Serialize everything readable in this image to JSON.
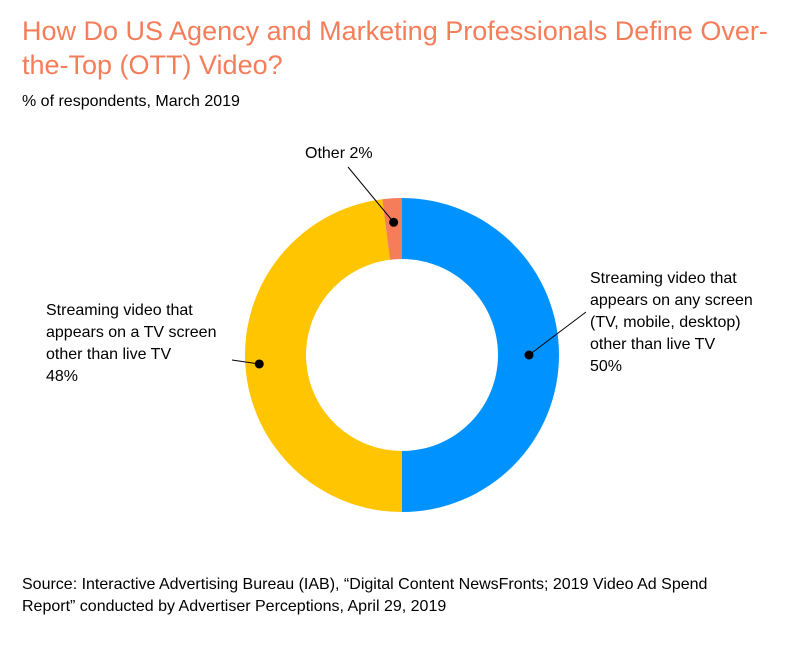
{
  "title": "How Do US Agency and Marketing Professionals Define Over-the-Top (OTT) Video?",
  "subtitle": "% of respondents, March 2019",
  "source": "Source: Interactive Advertising Bureau (IAB), “Digital Content NewsFronts; 2019 Video Ad Spend Report” conducted by Advertiser Perceptions, April 29, 2019",
  "labels": {
    "any_screen": "Streaming video that\nappears on any screen\n(TV, mobile, desktop)\nother than live TV\n50%",
    "tv_screen": "Streaming video that\nappears on a TV screen\nother than live TV\n48%",
    "other": "Other 2%"
  },
  "chart_data": {
    "type": "pie",
    "style": "donut",
    "title": "How Do US Agency and Marketing Professionals Define Over-the-Top (OTT) Video?",
    "subtitle": "% of respondents, March 2019",
    "unit": "%",
    "slices": [
      {
        "name": "Streaming video that appears on any screen (TV, mobile, desktop) other than live TV",
        "value": 50,
        "color": "#0093ff"
      },
      {
        "name": "Streaming video that appears on a TV screen other than live TV",
        "value": 48,
        "color": "#ffc500"
      },
      {
        "name": "Other",
        "value": 2,
        "color": "#f57d5a"
      }
    ],
    "legend": "none"
  }
}
